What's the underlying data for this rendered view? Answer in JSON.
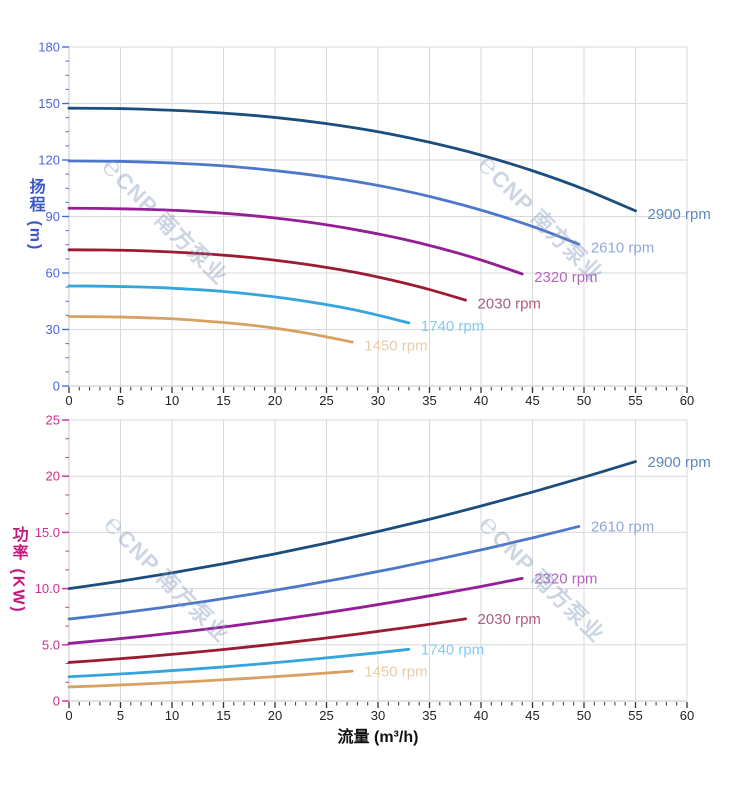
{
  "watermark": {
    "logo": "℮",
    "text": "CNP 南方泵业"
  },
  "colors": {
    "grid": "#d9d9d9",
    "frame": "#c6c6c6",
    "x_tick": "#333333",
    "x_tick_text": "#222222",
    "head_axis_accent": "#4c6bdb",
    "head_tick_text": "#4a68d8",
    "head_title": "#3b55cf",
    "power_axis_accent": "#d42a94",
    "power_tick_text": "#cd2d90",
    "power_title": "#c2187e"
  },
  "chart_data": [
    {
      "type": "line",
      "name": "head-vs-flow-chart",
      "title": "",
      "xlabel": "",
      "ylabel": "扬程 (m)",
      "xlim": [
        0,
        60
      ],
      "ylim": [
        0,
        180
      ],
      "grid": true,
      "legend_position": "curve-end-labels",
      "x_ticks": {
        "major_step": 5,
        "minor_step": 1,
        "labels": [
          "0",
          "5",
          "10",
          "15",
          "20",
          "25",
          "30",
          "35",
          "40",
          "45",
          "50",
          "55",
          "60"
        ]
      },
      "y_ticks": {
        "values": [
          0,
          30,
          60,
          90,
          120,
          150,
          180
        ],
        "labels": [
          "0",
          "30",
          "60",
          "90",
          "120",
          "150",
          "180"
        ],
        "minor_step": 7.5
      },
      "series": [
        {
          "name": "2900 rpm",
          "color": "#1c4e7d",
          "label_color": "#5f86bd",
          "x": [
            0,
            5,
            10,
            15,
            20,
            25,
            30,
            35,
            40,
            45,
            50,
            55
          ],
          "y": [
            147.5,
            147.3,
            146.4,
            144.9,
            142.6,
            139.3,
            135.0,
            129.4,
            122.6,
            114.3,
            104.5,
            93.0
          ]
        },
        {
          "name": "2610 rpm",
          "color": "#4d77c9",
          "label_color": "#8fa8dc",
          "x": [
            0,
            4.5,
            9,
            13.5,
            18,
            22.5,
            27,
            31.5,
            36,
            40.5,
            45,
            49.5
          ],
          "y": [
            119.5,
            119.3,
            118.6,
            117.4,
            115.5,
            112.8,
            109.3,
            104.9,
            99.3,
            92.6,
            84.7,
            75.3
          ]
        },
        {
          "name": "2320 rpm",
          "color": "#941e95",
          "label_color": "#b464bd",
          "x": [
            0,
            4,
            8,
            12,
            16,
            20,
            24,
            28,
            32,
            36,
            40,
            44
          ],
          "y": [
            94.4,
            94.2,
            93.7,
            92.8,
            91.3,
            89.2,
            86.4,
            82.8,
            78.5,
            73.2,
            66.9,
            59.5
          ]
        },
        {
          "name": "2030 rpm",
          "color": "#9c1b33",
          "label_color": "#aa5c82",
          "x": [
            0,
            3.5,
            7,
            10.5,
            14,
            17.5,
            21,
            24.5,
            28,
            31.5,
            35,
            38.5
          ],
          "y": [
            72.3,
            72.2,
            71.8,
            71.0,
            69.9,
            68.3,
            66.1,
            63.4,
            60.1,
            56.0,
            51.2,
            45.6
          ]
        },
        {
          "name": "1740 rpm",
          "color": "#35a5dd",
          "label_color": "#82cbf0",
          "x": [
            0,
            3,
            6,
            9,
            12,
            15,
            18,
            21,
            24,
            27,
            30,
            33
          ],
          "y": [
            53.1,
            53.0,
            52.7,
            52.2,
            51.3,
            50.2,
            48.6,
            46.6,
            44.1,
            41.2,
            37.6,
            33.5
          ]
        },
        {
          "name": "1450 rpm",
          "color": "#d7a160",
          "label_color": "#e8cda6",
          "x": [
            0,
            2.5,
            5,
            7.5,
            10,
            12.5,
            15,
            17.5,
            20,
            22.5,
            25,
            27.5
          ],
          "y": [
            36.9,
            36.8,
            36.6,
            36.2,
            35.7,
            34.8,
            33.7,
            32.4,
            30.7,
            28.6,
            26.1,
            23.3
          ]
        }
      ]
    },
    {
      "type": "line",
      "name": "power-vs-flow-chart",
      "title": "",
      "xlabel": "流量 (m³/h)",
      "ylabel": "功率 (KW)",
      "xlim": [
        0,
        60
      ],
      "ylim": [
        0,
        25
      ],
      "grid": true,
      "legend_position": "curve-end-labels",
      "x_ticks": {
        "major_step": 5,
        "minor_step": 1,
        "labels": [
          "0",
          "5",
          "10",
          "15",
          "20",
          "25",
          "30",
          "35",
          "40",
          "45",
          "50",
          "55",
          "60"
        ]
      },
      "y_ticks": {
        "values": [
          0,
          5,
          10,
          15,
          20,
          25
        ],
        "labels": [
          "0",
          "5.0",
          "10.0",
          "15.0",
          "20",
          "25"
        ],
        "minor_step": 1.6667
      },
      "series": [
        {
          "name": "2900 rpm",
          "color": "#1c4e7d",
          "label_color": "#5f86bd",
          "x": [
            0,
            5,
            10,
            15,
            20,
            25,
            30,
            35,
            40,
            45,
            50,
            55
          ],
          "y": [
            10.0,
            10.66,
            11.4,
            12.21,
            13.09,
            14.05,
            15.08,
            16.17,
            17.35,
            18.59,
            19.91,
            21.3
          ]
        },
        {
          "name": "2610 rpm",
          "color": "#4d77c9",
          "label_color": "#8fa8dc",
          "x": [
            0,
            4.5,
            9,
            13.5,
            18,
            22.5,
            27,
            31.5,
            36,
            40.5,
            45,
            49.5
          ],
          "y": [
            7.29,
            7.77,
            8.31,
            8.9,
            9.54,
            10.24,
            10.99,
            11.79,
            12.65,
            13.55,
            14.51,
            15.53
          ]
        },
        {
          "name": "2320 rpm",
          "color": "#941e95",
          "label_color": "#b464bd",
          "x": [
            0,
            4,
            8,
            12,
            16,
            20,
            24,
            28,
            32,
            36,
            40,
            44
          ],
          "y": [
            5.12,
            5.46,
            5.84,
            6.25,
            6.7,
            7.19,
            7.72,
            8.28,
            8.88,
            9.52,
            10.19,
            10.91
          ]
        },
        {
          "name": "2030 rpm",
          "color": "#9c1b33",
          "label_color": "#aa5c82",
          "x": [
            0,
            3.5,
            7,
            10.5,
            14,
            17.5,
            21,
            24.5,
            28,
            31.5,
            35,
            38.5
          ],
          "y": [
            3.43,
            3.66,
            3.91,
            4.19,
            4.49,
            4.82,
            5.17,
            5.55,
            5.95,
            6.38,
            6.83,
            7.31
          ]
        },
        {
          "name": "1740 rpm",
          "color": "#35a5dd",
          "label_color": "#82cbf0",
          "x": [
            0,
            3,
            6,
            9,
            12,
            15,
            18,
            21,
            24,
            27,
            30,
            33
          ],
          "y": [
            2.16,
            2.3,
            2.46,
            2.64,
            2.83,
            3.03,
            3.26,
            3.49,
            3.75,
            4.02,
            4.3,
            4.6
          ]
        },
        {
          "name": "1450 rpm",
          "color": "#d7a160",
          "label_color": "#e8cda6",
          "x": [
            0,
            2.5,
            5,
            7.5,
            10,
            12.5,
            15,
            17.5,
            20,
            22.5,
            25,
            27.5
          ],
          "y": [
            1.25,
            1.33,
            1.43,
            1.53,
            1.64,
            1.76,
            1.89,
            2.02,
            2.17,
            2.32,
            2.49,
            2.66
          ]
        }
      ]
    }
  ]
}
